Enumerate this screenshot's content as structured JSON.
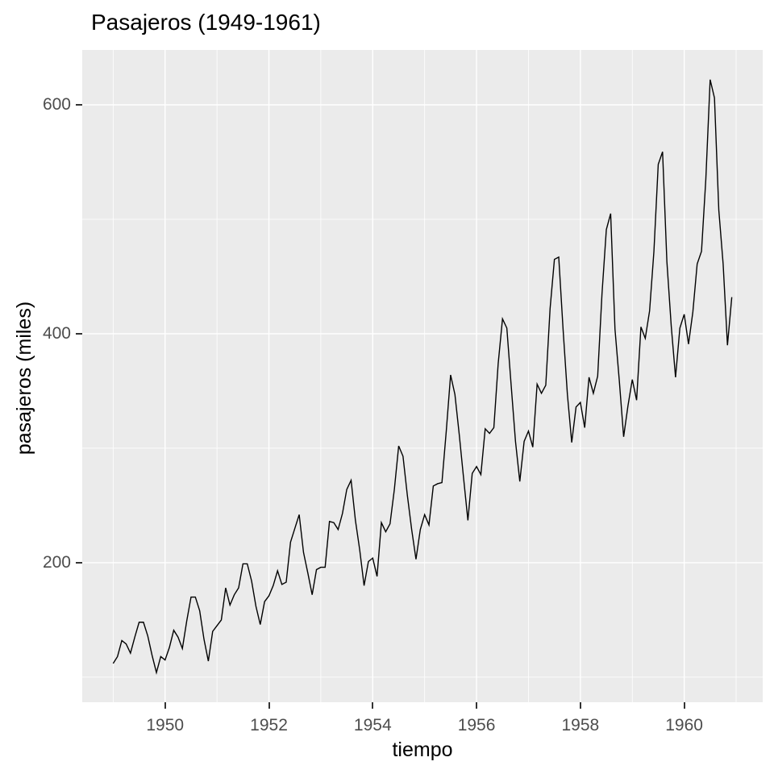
{
  "title": "Pasajeros (1949-1961)",
  "colors": {
    "panel_bg": "#EBEBEB",
    "grid": "#FFFFFF",
    "line": "#000000",
    "tick_label": "#4D4D4D",
    "tick_mark": "#333333",
    "title_text": "#000000"
  },
  "chart_data": {
    "type": "line",
    "title": "Pasajeros (1949-1961)",
    "xlabel": "tiempo",
    "ylabel": "pasajeros (miles)",
    "x_start_year": 1949,
    "x_step_months": 1,
    "values": [
      112,
      118,
      132,
      129,
      121,
      135,
      148,
      148,
      136,
      119,
      104,
      118,
      115,
      126,
      141,
      135,
      125,
      149,
      170,
      170,
      158,
      133,
      114,
      140,
      145,
      150,
      178,
      163,
      172,
      178,
      199,
      199,
      184,
      162,
      146,
      166,
      171,
      180,
      193,
      181,
      183,
      218,
      230,
      242,
      209,
      191,
      172,
      194,
      196,
      196,
      236,
      235,
      229,
      243,
      264,
      272,
      237,
      211,
      180,
      201,
      204,
      188,
      235,
      227,
      234,
      264,
      302,
      293,
      259,
      229,
      203,
      229,
      242,
      233,
      267,
      269,
      270,
      315,
      364,
      347,
      312,
      274,
      237,
      278,
      284,
      277,
      317,
      313,
      318,
      374,
      413,
      405,
      355,
      306,
      271,
      306,
      315,
      301,
      356,
      348,
      355,
      422,
      465,
      467,
      404,
      347,
      305,
      336,
      340,
      318,
      362,
      348,
      363,
      435,
      491,
      505,
      404,
      359,
      310,
      337,
      360,
      342,
      406,
      396,
      420,
      472,
      548,
      559,
      463,
      407,
      362,
      405,
      417,
      391,
      419,
      461,
      472,
      535,
      622,
      606,
      508,
      461,
      390,
      432
    ],
    "x_ticks": [
      1950,
      1952,
      1954,
      1956,
      1958,
      1960
    ],
    "x_minor_ticks": [
      1949,
      1951,
      1953,
      1955,
      1957,
      1959,
      1961
    ],
    "y_ticks": [
      200,
      400,
      600
    ],
    "y_minor_ticks": [
      100,
      300,
      500
    ],
    "xlim": [
      1948.4042,
      1961.5125
    ],
    "ylim": [
      78.1,
      647.9
    ],
    "grid": true,
    "legend": "none"
  }
}
